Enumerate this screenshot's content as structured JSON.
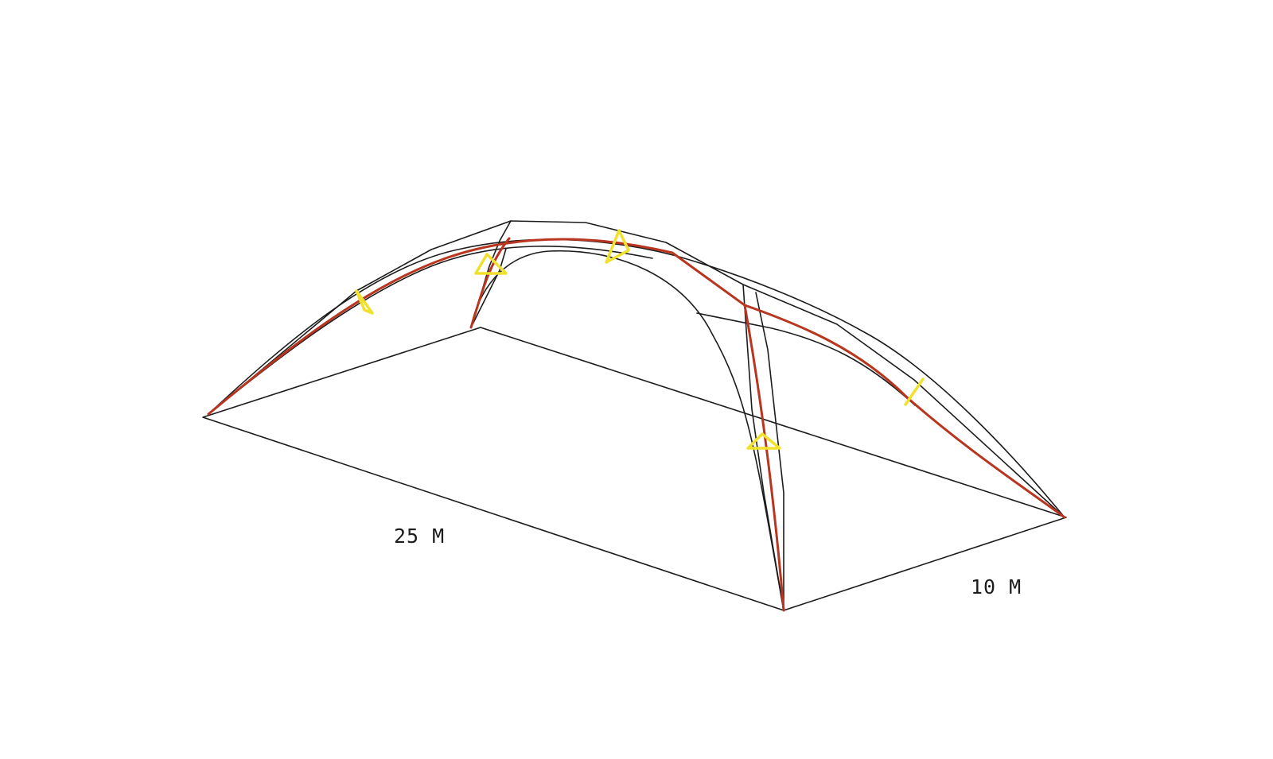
{
  "diagram": {
    "dimensions": {
      "length_label": "25 M",
      "width_label": "10 M"
    },
    "colors": {
      "frame": "#1c1c1c",
      "arch": "#b8361f",
      "marker": "#f0e22c",
      "background": "#ffffff"
    }
  }
}
